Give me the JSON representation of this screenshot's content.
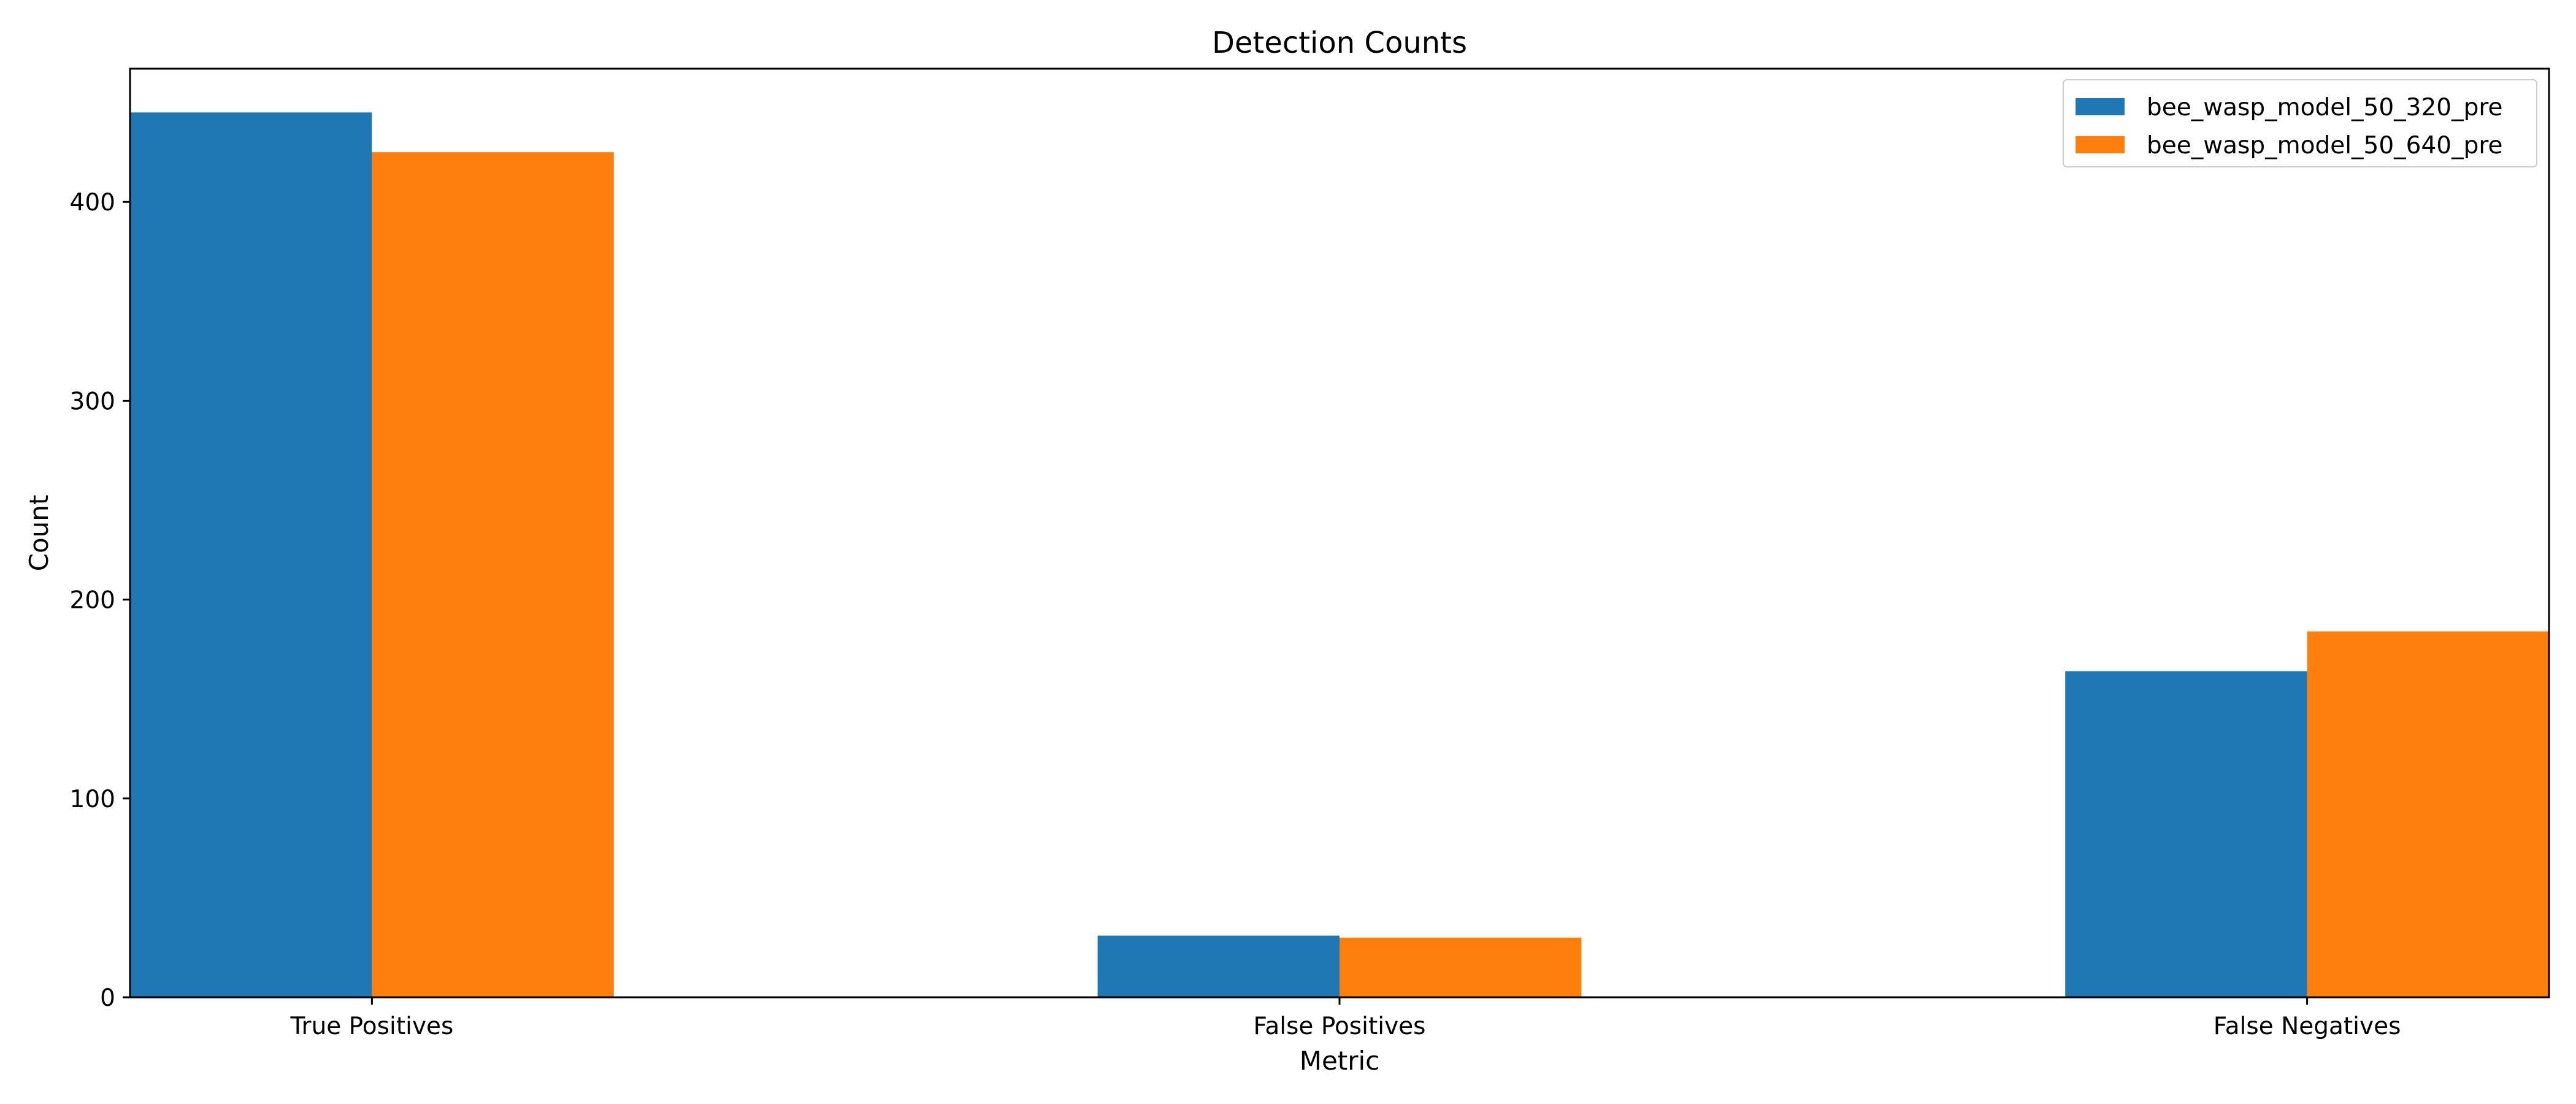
{
  "chart_data": {
    "type": "bar",
    "title": "Detection Counts",
    "xlabel": "Metric",
    "ylabel": "Count",
    "categories": [
      "True Positives",
      "False Positives",
      "False Negatives"
    ],
    "series": [
      {
        "name": "bee_wasp_model_50_320_pre",
        "color": "#1f77b4",
        "values": [
          445,
          31,
          164
        ]
      },
      {
        "name": "bee_wasp_model_50_640_pre",
        "color": "#ff7f0e",
        "values": [
          425,
          30,
          184
        ]
      }
    ],
    "ylim": [
      0,
      467
    ],
    "yticks": [
      0,
      100,
      200,
      300,
      400
    ],
    "grid": false,
    "legend": "upper-right"
  }
}
